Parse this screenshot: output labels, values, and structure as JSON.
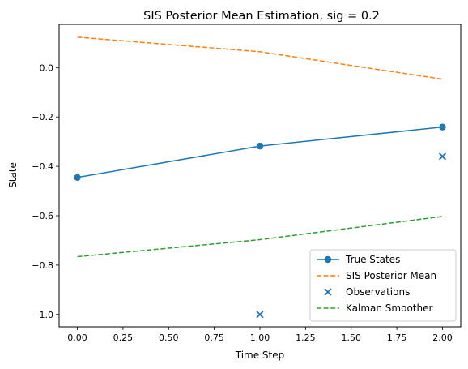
{
  "chart_data": {
    "type": "line",
    "title": "SIS Posterior Mean Estimation, sig = 0.2",
    "xlabel": "Time Step",
    "ylabel": "State",
    "xlim": [
      -0.1,
      2.1
    ],
    "ylim": [
      -1.05,
      0.175
    ],
    "xticks": [
      0.0,
      0.25,
      0.5,
      0.75,
      1.0,
      1.25,
      1.5,
      1.75,
      2.0
    ],
    "xtick_labels": [
      "0.00",
      "0.25",
      "0.50",
      "0.75",
      "1.00",
      "1.25",
      "1.50",
      "1.75",
      "2.00"
    ],
    "yticks": [
      0.0,
      -0.2,
      -0.4,
      -0.6,
      -0.8,
      -1.0
    ],
    "ytick_labels": [
      "0.0",
      "−0.2",
      "−0.4",
      "−0.6",
      "−0.8",
      "−1.0"
    ],
    "grid": false,
    "legend_position": "lower-right",
    "x": [
      0,
      1,
      2
    ],
    "series": [
      {
        "name": "True States",
        "style": "line-circle",
        "color": "#1f77b4",
        "values": [
          -0.445,
          -0.318,
          -0.241
        ]
      },
      {
        "name": "SIS Posterior Mean",
        "style": "dashed",
        "color": "#ff7f0e",
        "values": [
          0.123,
          0.064,
          -0.047
        ]
      },
      {
        "name": "Observations",
        "style": "scatter-x",
        "color": "#1f77b4",
        "values": [
          null,
          -1.0,
          -0.36
        ]
      },
      {
        "name": "Kalman Smoother",
        "style": "dashed",
        "color": "#2ca02c",
        "values": [
          -0.766,
          -0.697,
          -0.603
        ]
      }
    ]
  }
}
